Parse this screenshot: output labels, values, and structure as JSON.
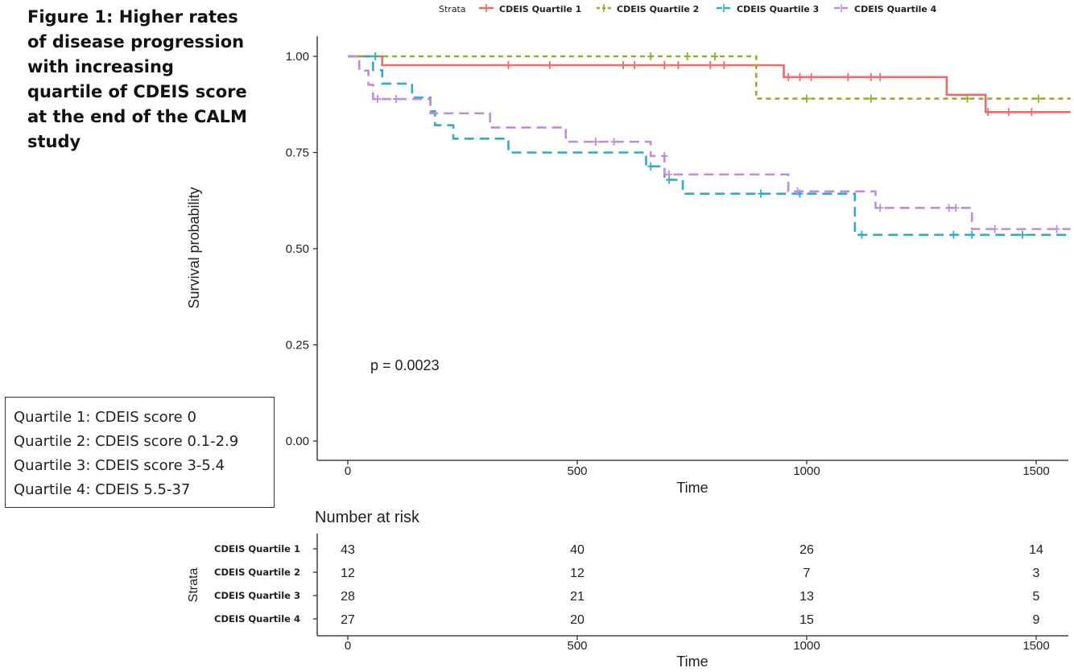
{
  "figure_title": {
    "lines": [
      "Figure 1: Higher rates",
      "of disease progression",
      "with increasing",
      "quartile of CDEIS score",
      "at the end of the CALM",
      "study"
    ]
  },
  "quartile_key": [
    "Quartile 1: CDEIS score 0",
    "Quartile 2: CDEIS score 0.1-2.9",
    "Quartile 3: CDEIS score 3-5.4",
    "Quartile 4: CDEIS 5.5-37"
  ],
  "colors": {
    "q1": "#F06A6A",
    "q2": "#8DB32B",
    "q3": "#2BAFC1",
    "q4": "#C08CE0"
  },
  "chart_data": {
    "type": "line",
    "subtype": "kaplan-meier-step",
    "title": "",
    "xlabel": "Time",
    "ylabel": "Survival probability",
    "xlim": [
      -60,
      1560
    ],
    "ylim": [
      -0.04,
      1.05
    ],
    "xticks": [
      0,
      500,
      1000,
      1500
    ],
    "yticks": [
      0.0,
      0.25,
      0.5,
      0.75,
      1.0
    ],
    "ytick_labels": [
      "0.00",
      "0.25",
      "0.50",
      "0.75",
      "1.00"
    ],
    "grid": false,
    "legend_title": "Strata",
    "legend_position": "top",
    "annotation": "p = 0.0023",
    "series": [
      {
        "name": "CDEIS Quartile 1",
        "color_key": "q1",
        "dash": "solid",
        "steps": [
          [
            0,
            1.0
          ],
          [
            75,
            0.977
          ],
          [
            950,
            0.946
          ],
          [
            1305,
            0.9
          ],
          [
            1390,
            0.855
          ],
          [
            1575,
            0.855
          ]
        ],
        "censors": [
          [
            350,
            0.977
          ],
          [
            440,
            0.977
          ],
          [
            600,
            0.977
          ],
          [
            625,
            0.977
          ],
          [
            690,
            0.977
          ],
          [
            720,
            0.977
          ],
          [
            790,
            0.977
          ],
          [
            820,
            0.977
          ],
          [
            960,
            0.946
          ],
          [
            985,
            0.946
          ],
          [
            1010,
            0.946
          ],
          [
            1090,
            0.946
          ],
          [
            1140,
            0.946
          ],
          [
            1160,
            0.946
          ],
          [
            1395,
            0.855
          ],
          [
            1440,
            0.855
          ],
          [
            1490,
            0.855
          ]
        ]
      },
      {
        "name": "CDEIS Quartile 2",
        "color_key": "q2",
        "dash": "short",
        "steps": [
          [
            0,
            1.0
          ],
          [
            890,
            0.89
          ],
          [
            1575,
            0.89
          ]
        ],
        "censors": [
          [
            660,
            1.0
          ],
          [
            740,
            1.0
          ],
          [
            800,
            1.0
          ],
          [
            1000,
            0.89
          ],
          [
            1140,
            0.89
          ],
          [
            1350,
            0.89
          ],
          [
            1505,
            0.89
          ]
        ]
      },
      {
        "name": "CDEIS Quartile 3",
        "color_key": "q3",
        "dash": "long",
        "steps": [
          [
            0,
            1.0
          ],
          [
            55,
            0.964
          ],
          [
            75,
            0.929
          ],
          [
            140,
            0.893
          ],
          [
            180,
            0.857
          ],
          [
            190,
            0.821
          ],
          [
            230,
            0.786
          ],
          [
            350,
            0.75
          ],
          [
            650,
            0.714
          ],
          [
            690,
            0.679
          ],
          [
            730,
            0.643
          ],
          [
            1105,
            0.536
          ],
          [
            1575,
            0.536
          ]
        ],
        "censors": [
          [
            60,
            1.0
          ],
          [
            660,
            0.714
          ],
          [
            700,
            0.679
          ],
          [
            900,
            0.643
          ],
          [
            985,
            0.643
          ],
          [
            1120,
            0.536
          ],
          [
            1320,
            0.536
          ],
          [
            1360,
            0.536
          ],
          [
            1470,
            0.536
          ]
        ]
      },
      {
        "name": "CDEIS Quartile 4",
        "color_key": "q4",
        "dash": "long",
        "steps": [
          [
            0,
            1.0
          ],
          [
            25,
            0.963
          ],
          [
            45,
            0.926
          ],
          [
            55,
            0.889
          ],
          [
            180,
            0.852
          ],
          [
            310,
            0.815
          ],
          [
            475,
            0.778
          ],
          [
            660,
            0.741
          ],
          [
            690,
            0.693
          ],
          [
            960,
            0.649
          ],
          [
            1150,
            0.606
          ],
          [
            1360,
            0.551
          ],
          [
            1575,
            0.551
          ]
        ],
        "censors": [
          [
            65,
            0.889
          ],
          [
            105,
            0.889
          ],
          [
            540,
            0.778
          ],
          [
            580,
            0.778
          ],
          [
            690,
            0.741
          ],
          [
            700,
            0.693
          ],
          [
            980,
            0.649
          ],
          [
            1160,
            0.606
          ],
          [
            1310,
            0.606
          ],
          [
            1325,
            0.606
          ],
          [
            1410,
            0.551
          ],
          [
            1545,
            0.551
          ]
        ]
      }
    ],
    "risk_table": {
      "title": "Number at risk",
      "ylabel": "Strata",
      "xlabel": "Time",
      "times": [
        0,
        500,
        1000,
        1500
      ],
      "rows": [
        {
          "label": "CDEIS Quartile 1",
          "values": [
            43,
            40,
            26,
            14
          ]
        },
        {
          "label": "CDEIS Quartile 2",
          "values": [
            12,
            12,
            7,
            3
          ]
        },
        {
          "label": "CDEIS Quartile 3",
          "values": [
            28,
            21,
            13,
            5
          ]
        },
        {
          "label": "CDEIS Quartile 4",
          "values": [
            27,
            20,
            15,
            9
          ]
        }
      ]
    }
  }
}
